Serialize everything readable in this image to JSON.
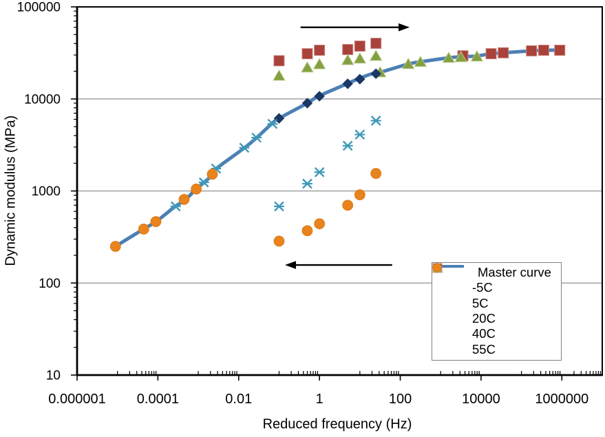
{
  "chart_data": {
    "type": "scatter",
    "title": "",
    "xlabel": "Reduced frequency (Hz)",
    "ylabel": "Dynamic modulus (MPa)",
    "x_scale": "log",
    "y_scale": "log",
    "xlim": [
      1e-06,
      10000000
    ],
    "ylim": [
      10,
      100000
    ],
    "grid_y_values": [
      100,
      1000,
      10000
    ],
    "x_ticks": [
      {
        "value": 1e-06,
        "label": "0.000001"
      },
      {
        "value": 0.0001,
        "label": "0.0001"
      },
      {
        "value": 0.01,
        "label": "0.01"
      },
      {
        "value": 1,
        "label": "1"
      },
      {
        "value": 100,
        "label": "100"
      },
      {
        "value": 10000,
        "label": "10000"
      },
      {
        "value": 1000000,
        "label": "1000000"
      }
    ],
    "y_ticks": [
      {
        "value": 100000,
        "label": "100000"
      },
      {
        "value": 10000,
        "label": "10000"
      },
      {
        "value": 1000,
        "label": "1000"
      },
      {
        "value": 100,
        "label": "100"
      },
      {
        "value": 10,
        "label": "10"
      }
    ],
    "measured_frequencies_hz": [
      0.1,
      0.5,
      1,
      5,
      10,
      25
    ],
    "series": [
      {
        "name": "Master curve",
        "type": "line",
        "color": "#4C7FB5",
        "points": [
          [
            8.9e-06,
            250
          ],
          [
            4.4e-05,
            385
          ],
          [
            9e-05,
            465
          ],
          [
            0.00027,
            680
          ],
          [
            0.00049,
            810
          ],
          [
            0.00088,
            1050
          ],
          [
            0.0014,
            1240
          ],
          [
            0.0023,
            1520
          ],
          [
            0.0028,
            1750
          ],
          [
            0.014,
            2950
          ],
          [
            0.028,
            3800
          ],
          [
            0.065,
            5350
          ],
          [
            0.1,
            6150
          ],
          [
            0.5,
            9000
          ],
          [
            0.95,
            10700
          ],
          [
            4.8,
            14600
          ],
          [
            8.7,
            16400
          ],
          [
            20,
            18800
          ],
          [
            32,
            19500
          ],
          [
            160,
            24000
          ],
          [
            320,
            25300
          ],
          [
            1600,
            28000
          ],
          [
            3200,
            28700
          ],
          [
            7900,
            29300
          ],
          [
            17800,
            31000
          ],
          [
            35500,
            31700
          ],
          [
            178000,
            33300
          ],
          [
            355000,
            33800
          ],
          [
            890000,
            33900
          ]
        ]
      },
      {
        "name": "-5C",
        "type": "points",
        "marker": "square",
        "color": "#A8423A",
        "border": "#CB8380",
        "log_shift_factor": 4.55,
        "measured_moduli_mpa": [
          26000,
          31000,
          33800,
          34400,
          37500,
          40200
        ],
        "shifted_moduli_mpa": [
          29400,
          31000,
          31700,
          33300,
          33800,
          33800
        ]
      },
      {
        "name": "5C",
        "type": "points",
        "marker": "triangle",
        "color": "#84A042",
        "border": "#B8CC8C",
        "log_shift_factor": 2.5,
        "measured_moduli_mpa": [
          17900,
          22000,
          23900,
          26500,
          27500,
          29400
        ],
        "shifted_moduli_mpa": [
          19500,
          24000,
          25300,
          28000,
          28500,
          29000
        ]
      },
      {
        "name": "20C",
        "type": "points",
        "marker": "diamond",
        "color": "#1A3866",
        "border": "#1A3866",
        "log_shift_factor": 0,
        "measured_moduli_mpa": [
          6150,
          9000,
          10700,
          14600,
          16400,
          18800
        ],
        "shifted_moduli_mpa": null
      },
      {
        "name": "40C",
        "type": "points",
        "marker": "x-cross",
        "color": "#3E99B8",
        "border": "#3E99B8",
        "log_shift_factor": -2.56,
        "measured_moduli_mpa": [
          680,
          1200,
          1600,
          3100,
          4100,
          5800
        ],
        "shifted_moduli_mpa": [
          680,
          1240,
          1750,
          2950,
          3800,
          5350
        ]
      },
      {
        "name": "55C",
        "type": "points",
        "marker": "circle",
        "color": "#E8831D",
        "border": "#DD7A15",
        "log_shift_factor": -4.05,
        "measured_moduli_mpa": [
          285,
          370,
          440,
          700,
          910,
          1550
        ],
        "shifted_moduli_mpa": [
          250,
          385,
          465,
          810,
          1050,
          1520
        ]
      }
    ],
    "annotations": [
      {
        "name": "shift-right-arrow",
        "from_hz": 0.34,
        "to_hz": 170,
        "at_mpa": 60000
      },
      {
        "name": "shift-left-arrow",
        "from_hz": 63,
        "to_hz": 0.14,
        "at_mpa": 157
      }
    ],
    "style": {
      "grid_color": "#909090",
      "axis_color": "#000000",
      "arrow_color": "#000000",
      "legend_border_color": "#7f7f7f",
      "background": "#FFFFFF"
    },
    "legend_position": "inside-bottom-right"
  }
}
